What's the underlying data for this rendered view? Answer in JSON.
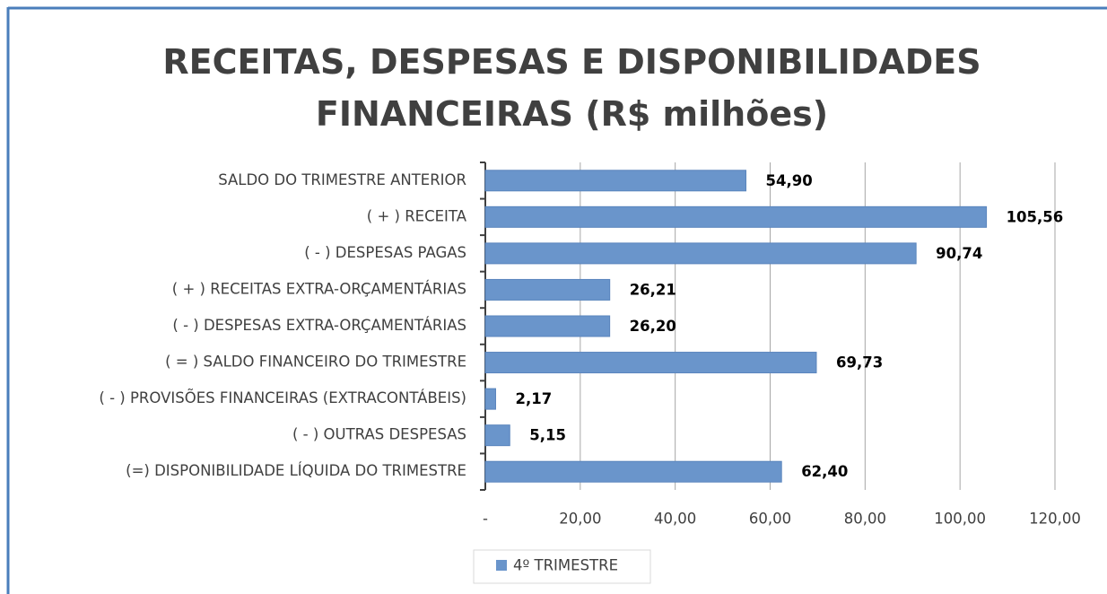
{
  "chart_data": {
    "type": "bar",
    "orientation": "horizontal",
    "title": "RECEITAS, DESPESAS E DISPONIBILIDADES FINANCEIRAS (R$ milhões)",
    "categories": [
      "SALDO DO TRIMESTRE ANTERIOR",
      "( + ) RECEITA",
      "( - )  DESPESAS PAGAS",
      "( + ) RECEITAS EXTRA-ORÇAMENTÁRIAS",
      "( - )  DESPESAS EXTRA-ORÇAMENTÁRIAS",
      "( = )  SALDO FINANCEIRO DO TRIMESTRE",
      "( - )  PROVISÕES FINANCEIRAS (EXTRACONTÁBEIS)",
      "( - )  OUTRAS DESPESAS",
      "(=) DISPONIBILIDADE LÍQUIDA DO TRIMESTRE"
    ],
    "series": [
      {
        "name": "4º TRIMESTRE",
        "color": "#6a95cb",
        "values": [
          54.9,
          105.56,
          90.74,
          26.21,
          26.2,
          69.73,
          2.17,
          5.15,
          62.4
        ],
        "value_labels": [
          "54,90",
          "105,56",
          "90,74",
          "26,21",
          "26,20",
          "69,73",
          "2,17",
          "5,15",
          "62,40"
        ]
      }
    ],
    "xlim": [
      0,
      120
    ],
    "xticks": [
      {
        "value": 0,
        "label": "-"
      },
      {
        "value": 20,
        "label": "20,00"
      },
      {
        "value": 40,
        "label": "40,00"
      },
      {
        "value": 60,
        "label": "60,00"
      },
      {
        "value": 80,
        "label": "80,00"
      },
      {
        "value": 100,
        "label": "100,00"
      },
      {
        "value": 120,
        "label": "120,00"
      }
    ],
    "grid": true,
    "legend": "bottom"
  }
}
